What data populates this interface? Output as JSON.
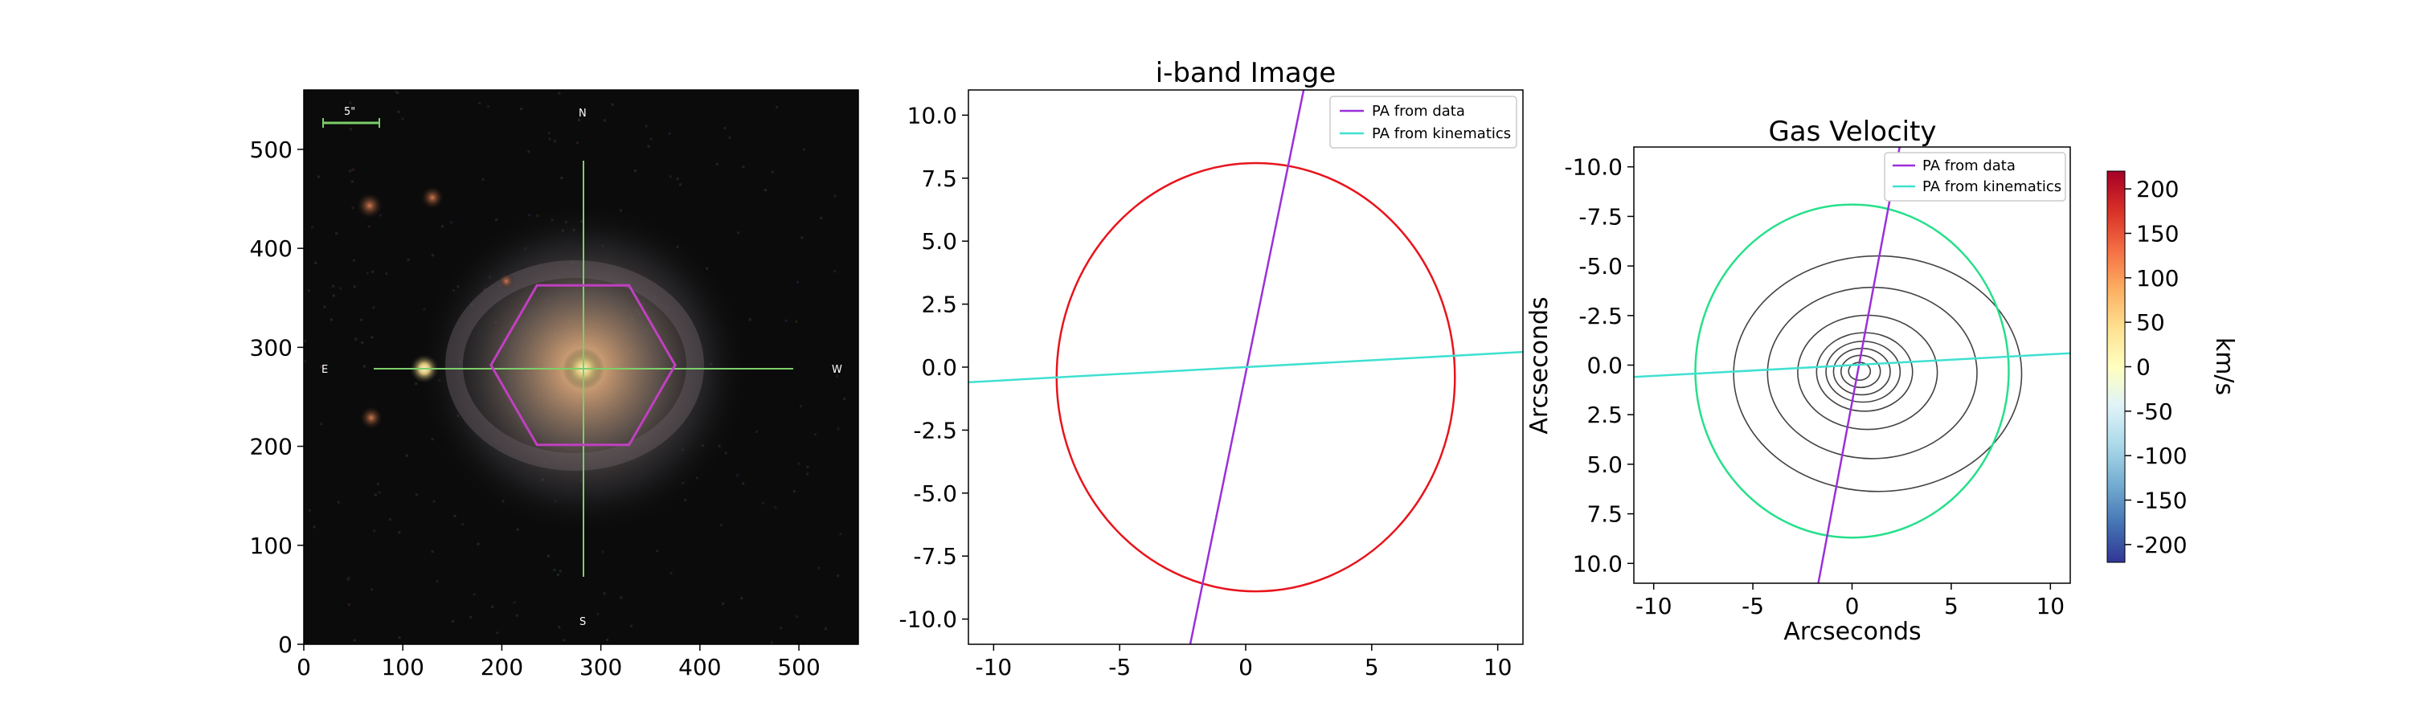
{
  "chart_data": [
    {
      "type": "image",
      "panel": "sky-image",
      "xlim": [
        0,
        560
      ],
      "ylim": [
        560,
        0
      ],
      "xticks": [
        0,
        100,
        200,
        300,
        400,
        500
      ],
      "yticks": [
        0,
        100,
        200,
        300,
        400,
        500
      ],
      "scale_bar_label": "5\"",
      "compass": {
        "N": "N",
        "S": "S",
        "E": "E",
        "W": "W"
      },
      "galaxy_center": [
        282,
        282
      ],
      "companion": [
        122,
        282
      ],
      "hexagon_center": [
        282,
        282
      ],
      "hexagon_radius": 93,
      "crosshair_color": "#7ccf6a",
      "hexagon_color": "#c040c0"
    },
    {
      "type": "heatmap",
      "panel": "i-band",
      "title": "i-band Image",
      "xlim": [
        -11,
        11
      ],
      "ylim": [
        11,
        -11
      ],
      "xticks": [
        -10,
        -5,
        0,
        5,
        10
      ],
      "yticks": [
        -10.0,
        -7.5,
        -5.0,
        -2.5,
        0.0,
        2.5,
        5.0,
        7.5,
        10.0
      ],
      "colormap": "viridis",
      "peak_center": [
        0.4,
        -0.4
      ],
      "data_radius": 8.2,
      "ellipse": {
        "center": [
          0.4,
          -0.4
        ],
        "rx": 7.9,
        "ry": 8.5,
        "color": "#e8141c"
      },
      "legend": [
        {
          "label": "PA from data",
          "color": "#9b30d9"
        },
        {
          "label": "PA from kinematics",
          "color": "#40e0d0"
        }
      ],
      "lines": [
        {
          "name": "PA from data",
          "x": [
            -2.2,
            2.3
          ],
          "y": [
            -11,
            11
          ],
          "color": "#9b30d9"
        },
        {
          "name": "PA from kinematics",
          "x": [
            -11,
            11
          ],
          "y": [
            -0.6,
            0.6
          ],
          "color": "#40e0d0"
        }
      ]
    },
    {
      "type": "heatmap",
      "panel": "gas-velocity",
      "title": "Gas Velocity",
      "xlabel": "Arcseconds",
      "ylabel": "Arcseconds",
      "xlim": [
        -11,
        11
      ],
      "ylim": [
        -11,
        11
      ],
      "xticks": [
        -10,
        -5,
        0,
        5,
        10
      ],
      "yticks": [
        10.0,
        7.5,
        5.0,
        2.5,
        0.0,
        -2.5,
        -5.0,
        -7.5,
        -10.0
      ],
      "colormap": "RdYlBu_r",
      "colorbar": {
        "label": "km/s",
        "range": [
          -220,
          220
        ],
        "ticks": [
          200,
          150,
          100,
          50,
          0,
          -50,
          -100,
          -150,
          -200
        ]
      },
      "data_radius": 8.2,
      "ellipse": {
        "center": [
          0,
          0.3
        ],
        "rx": 7.9,
        "ry": 8.4,
        "color": "#26e08a"
      },
      "contour_center": [
        0.3,
        0.3
      ],
      "legend": [
        {
          "label": "PA from data",
          "color": "#9b30d9"
        },
        {
          "label": "PA from kinematics",
          "color": "#40e0d0"
        }
      ],
      "lines": [
        {
          "name": "PA from data",
          "x": [
            -1.7,
            2.4
          ],
          "y": [
            11,
            -11
          ],
          "color": "#9b30d9"
        },
        {
          "name": "PA from kinematics",
          "x": [
            -11,
            11
          ],
          "y": [
            0.6,
            -0.6
          ],
          "color": "#40e0d0"
        }
      ]
    }
  ]
}
